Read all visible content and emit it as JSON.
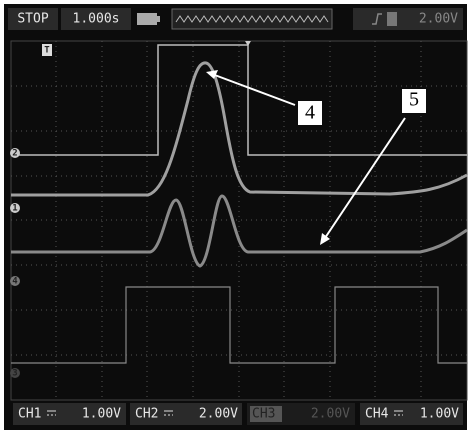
{
  "top_bar": {
    "status": "STOP",
    "timebase": "1.000s",
    "trigger_level": "2.00V"
  },
  "trigger_marker": "T",
  "channel_markers": [
    "2",
    "1",
    "4",
    "3"
  ],
  "annotations": [
    "4",
    "5"
  ],
  "channels": [
    {
      "name": "CH1",
      "scale": "1.00V"
    },
    {
      "name": "CH2",
      "scale": "2.00V"
    },
    {
      "name": "CH3",
      "scale": "2.00V"
    },
    {
      "name": "CH4",
      "scale": "1.00V"
    }
  ]
}
